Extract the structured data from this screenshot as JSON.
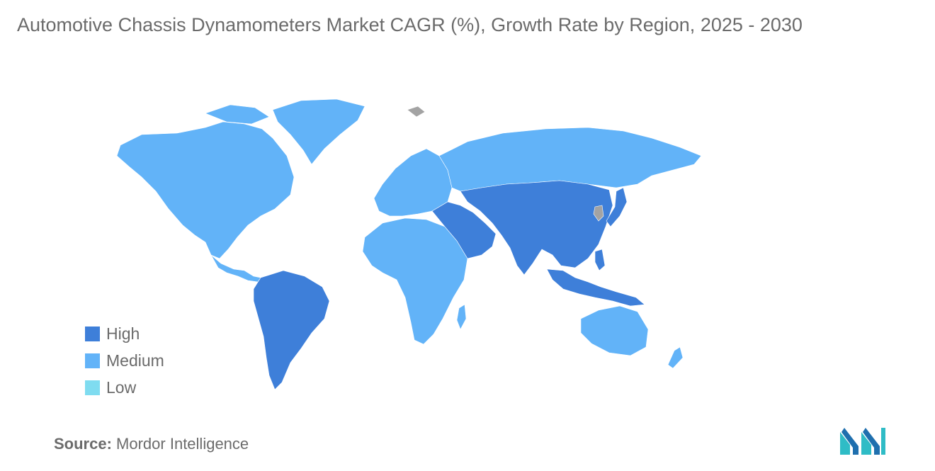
{
  "title": "Automotive Chassis Dynamometers Market CAGR (%), Growth Rate by Region, 2025 - 2030",
  "legend": [
    {
      "label": "High",
      "color": "#3e7fd9"
    },
    {
      "label": "Medium",
      "color": "#62b3f8"
    },
    {
      "label": "Low",
      "color": "#7fdcf0"
    }
  ],
  "no_data_color": "#a3a3a3",
  "regions": {
    "north_america": "Medium",
    "greenland": "Medium",
    "central_america_caribbean": "Medium",
    "south_america": "High",
    "europe": "Medium",
    "russia": "Medium",
    "africa": "Medium",
    "middle_east": "High",
    "central_asia": "High",
    "south_asia": "High",
    "china": "High",
    "japan": "High",
    "southeast_asia": "High",
    "australia_nz": "Medium"
  },
  "source": {
    "label": "Source:",
    "value": "Mordor Intelligence"
  }
}
